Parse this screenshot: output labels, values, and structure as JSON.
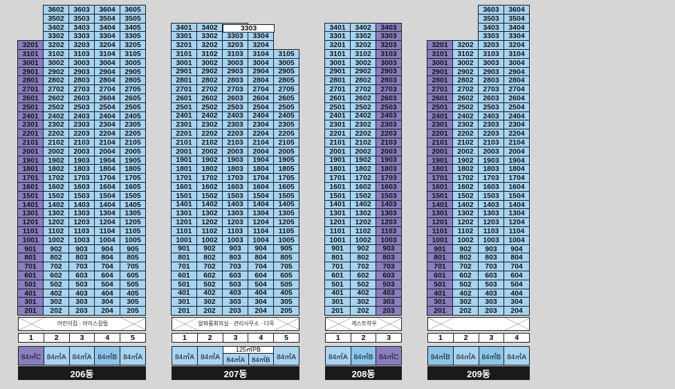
{
  "buildings": [
    {
      "title": "206동",
      "lines": [
        "1",
        "2",
        "3",
        "4",
        "5"
      ],
      "ground_label": "어린이집 · 아이스갈릴",
      "types": [
        "84㎡C",
        "84㎡A",
        "84㎡A",
        "84㎡B",
        "84㎡A"
      ],
      "type_colors": [
        "purple",
        "blue",
        "blue",
        "mid",
        "blue"
      ],
      "line_colors": [
        "purple",
        "blue",
        "blue",
        "blue",
        "blue"
      ],
      "floors_per_line": [
        31,
        35,
        35,
        35,
        35
      ],
      "min_floor": 2
    },
    {
      "title": "207동",
      "lines": [
        "1",
        "2",
        "3",
        "4",
        "5"
      ],
      "ground_label": "알파룸회의실 · 관리사무소 · 다목적운동센터",
      "types": [
        "84㎡A",
        "84㎡A",
        "125㎡PB|84㎡A|84㎡B",
        "84㎡A"
      ],
      "line_colors": [
        "blue",
        "blue",
        "blue",
        "blue",
        "blue"
      ],
      "floors_per_line": [
        33,
        33,
        33,
        32,
        30
      ],
      "min_floor": 2,
      "penthouse_label": "3303"
    },
    {
      "title": "208동",
      "lines": [
        "1",
        "2",
        "3"
      ],
      "ground_label": "게스트하우스",
      "types": [
        "84㎡A",
        "84㎡B",
        "84㎡C"
      ],
      "type_colors": [
        "blue",
        "mid",
        "purple"
      ],
      "line_colors": [
        "blue",
        "blue",
        "purple"
      ],
      "floors_per_line": [
        33,
        33,
        33
      ],
      "min_floor": 2
    },
    {
      "title": "209동",
      "lines": [
        "1",
        "2",
        "3",
        "4"
      ],
      "ground_label": "",
      "types": [
        "84㎡B",
        "84㎡A",
        "84㎡B",
        "84㎡A"
      ],
      "type_colors": [
        "mid",
        "blue",
        "mid",
        "blue"
      ],
      "line_colors": [
        "purple",
        "blue",
        "blue",
        "blue"
      ],
      "floors_per_line": [
        31,
        31,
        35,
        35
      ],
      "min_floor": 2
    }
  ]
}
